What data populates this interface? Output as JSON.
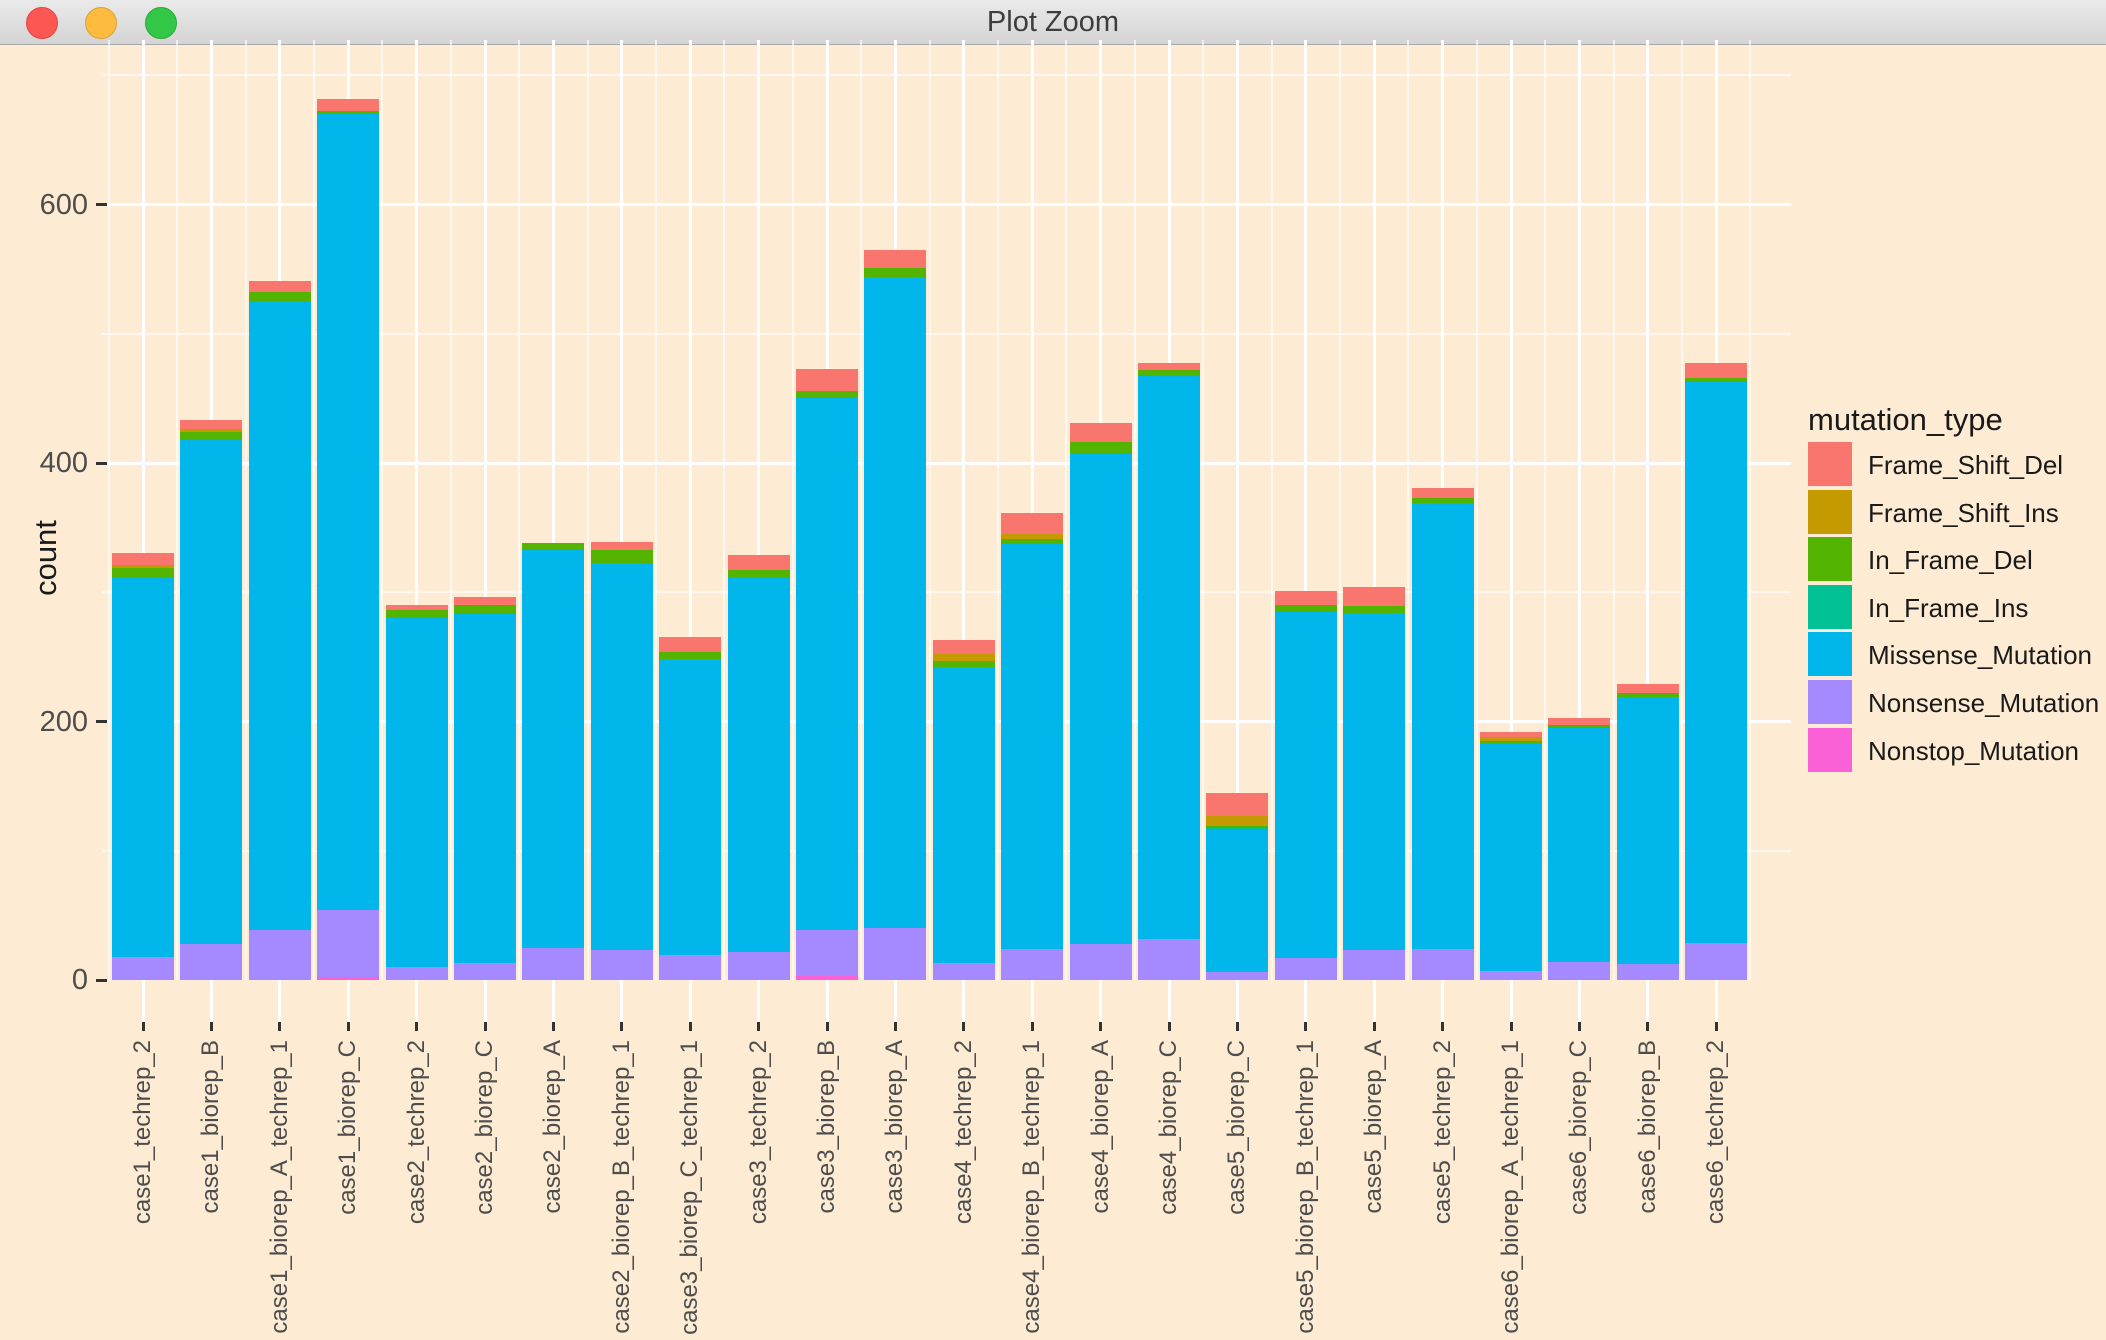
{
  "window": {
    "title": "Plot Zoom"
  },
  "y_axis": {
    "title": "count",
    "ticks": [
      0,
      200,
      400,
      600
    ],
    "minor_ticks": [
      100,
      300,
      500,
      700
    ]
  },
  "legend": {
    "title": "mutation_type"
  },
  "chart_data": {
    "type": "bar",
    "stacked": true,
    "orientation": "vertical",
    "xlabel": "",
    "ylabel": "count",
    "ylim": [
      0,
      727
    ],
    "grid": "white major/minor gridlines on peach background",
    "legend_position": "right",
    "legend_title": "mutation_type",
    "background_color": "#fdebd3",
    "categories": [
      "case1_techrep_2",
      "case1_biorep_B",
      "case1_biorep_A_techrep_1",
      "case1_biorep_C",
      "case2_techrep_2",
      "case2_biorep_C",
      "case2_biorep_A",
      "case2_biorep_B_techrep_1",
      "case3_biorep_C_techrep_1",
      "case3_techrep_2",
      "case3_biorep_B",
      "case3_biorep_A",
      "case4_techrep_2",
      "case4_biorep_B_techrep_1",
      "case4_biorep_A",
      "case4_biorep_C",
      "case5_biorep_C",
      "case5_biorep_B_techrep_1",
      "case5_biorep_A",
      "case5_techrep_2",
      "case6_biorep_A_techrep_1",
      "case6_biorep_C",
      "case6_biorep_B",
      "case6_techrep_2"
    ],
    "totals": [
      330,
      433,
      541,
      682,
      290,
      296,
      338,
      339,
      265,
      329,
      473,
      565,
      263,
      361,
      431,
      477,
      145,
      301,
      304,
      381,
      192,
      203,
      229,
      477
    ],
    "series": [
      {
        "name": "Frame_Shift_Del",
        "color": "#F8766D",
        "values": [
          9,
          7,
          9,
          10,
          4,
          6,
          0,
          6,
          11,
          12,
          17,
          14,
          11,
          16,
          15,
          5,
          18,
          11,
          15,
          8,
          4,
          6,
          7,
          11
        ]
      },
      {
        "name": "Frame_Shift_Ins",
        "color": "#C49A00",
        "values": [
          2,
          2,
          0,
          0,
          0,
          0,
          0,
          0,
          0,
          0,
          0,
          0,
          5,
          4,
          0,
          0,
          8,
          0,
          0,
          0,
          3,
          0,
          0,
          0
        ]
      },
      {
        "name": "In_Frame_Del",
        "color": "#53B400",
        "values": [
          7,
          6,
          7,
          2,
          6,
          7,
          5,
          10,
          6,
          5,
          6,
          7,
          5,
          4,
          9,
          5,
          1,
          5,
          5,
          4,
          2,
          2,
          3,
          3
        ]
      },
      {
        "name": "In_Frame_Ins",
        "color": "#00C094",
        "values": [
          0,
          0,
          0,
          0,
          0,
          0,
          0,
          0,
          0,
          0,
          0,
          0,
          0,
          0,
          0,
          0,
          2,
          0,
          0,
          0,
          0,
          0,
          0,
          0
        ]
      },
      {
        "name": "Missense_Mutation",
        "color": "#00B6EB",
        "values": [
          294,
          390,
          486,
          616,
          270,
          270,
          308,
          300,
          229,
          290,
          411,
          504,
          229,
          313,
          379,
          435,
          110,
          268,
          261,
          345,
          176,
          181,
          207,
          434
        ]
      },
      {
        "name": "Nonsense_Mutation",
        "color": "#A58AFF",
        "values": [
          18,
          28,
          39,
          52,
          10,
          13,
          25,
          23,
          19,
          22,
          36,
          40,
          13,
          23,
          28,
          32,
          6,
          17,
          23,
          24,
          7,
          13,
          12,
          29
        ]
      },
      {
        "name": "Nonstop_Mutation",
        "color": "#FB61D7",
        "values": [
          0,
          0,
          0,
          2,
          0,
          0,
          0,
          0,
          0,
          0,
          3,
          0,
          0,
          1,
          0,
          0,
          0,
          0,
          0,
          0,
          0,
          1,
          0,
          0
        ]
      }
    ]
  }
}
